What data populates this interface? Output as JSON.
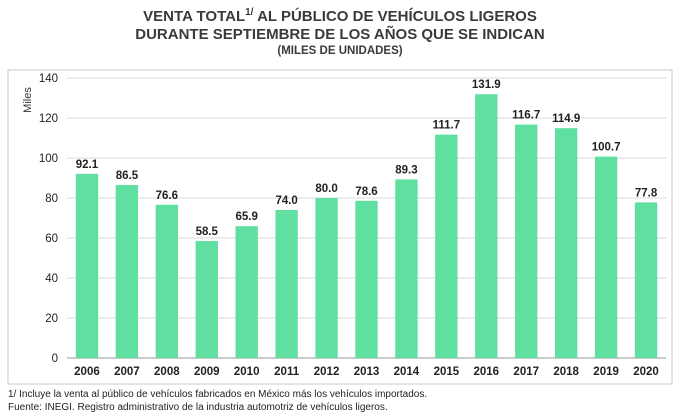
{
  "title": {
    "line1_before": "VENTA TOTAL",
    "line1_sup": "1/",
    "line1_after": " AL PÚBLICO DE VEHÍCULOS LIGEROS",
    "line2": "DURANTE SEPTIEMBRE DE LOS AÑOS QUE SE INDICAN",
    "line3": "(MILES DE UNIDADES)"
  },
  "chart_data": {
    "type": "bar",
    "ylabel": "Miles",
    "ylim": [
      0,
      140
    ],
    "yticks": [
      0,
      20,
      40,
      60,
      80,
      100,
      120,
      140
    ],
    "categories": [
      "2006",
      "2007",
      "2008",
      "2009",
      "2010",
      "2011",
      "2012",
      "2013",
      "2014",
      "2015",
      "2016",
      "2017",
      "2018",
      "2019",
      "2020"
    ],
    "values": [
      92.1,
      86.5,
      76.6,
      58.5,
      65.9,
      74.0,
      80.0,
      78.6,
      89.3,
      111.7,
      131.9,
      116.7,
      114.9,
      100.7,
      77.8
    ],
    "value_labels": [
      "92.1",
      "86.5",
      "76.6",
      "58.5",
      "65.9",
      "74.0",
      "80.0",
      "78.6",
      "89.3",
      "111.7",
      "131.9",
      "116.7",
      "114.9",
      "100.7",
      "77.8"
    ],
    "bar_color": "#5fe0a1",
    "grid": true,
    "legend": "none"
  },
  "footnotes": {
    "note1": "1/ Incluye la venta al público de vehículos fabricados en México más los vehículos importados.",
    "source": "Fuente: INEGI. Registro administrativo de la industria automotriz de vehículos ligeros."
  }
}
